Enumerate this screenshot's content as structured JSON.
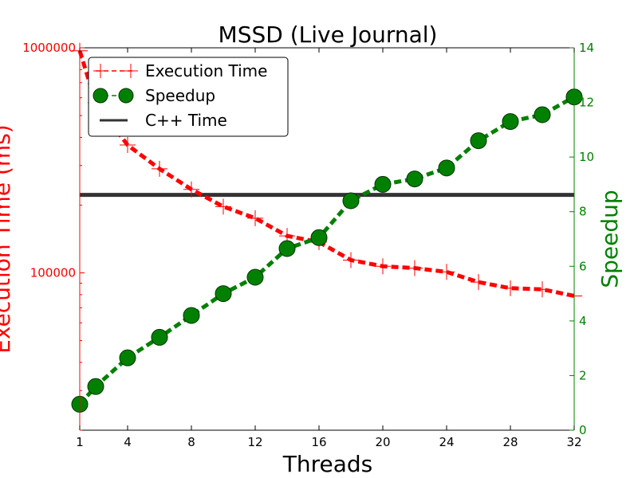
{
  "chart_data": {
    "type": "line",
    "title": "MSSD (Live Journal)",
    "xlabel": "Threads",
    "ylabel_left": "Execution Time (ms)",
    "ylabel_right": "Speedup",
    "xlim": [
      1,
      32
    ],
    "ylim_left": [
      20000,
      1000000
    ],
    "ylim_left_scale": "log",
    "ylim_right": [
      0,
      14
    ],
    "xticks": [
      {
        "value": 1,
        "label": "1"
      },
      {
        "value": 4,
        "label": "4"
      },
      {
        "value": 8,
        "label": "8"
      },
      {
        "value": 12,
        "label": "12"
      },
      {
        "value": 16,
        "label": "16"
      },
      {
        "value": 20,
        "label": "20"
      },
      {
        "value": 24,
        "label": "24"
      },
      {
        "value": 28,
        "label": "28"
      },
      {
        "value": 32,
        "label": "32"
      }
    ],
    "yticks_left": [
      {
        "value": 100000,
        "label": "100000"
      },
      {
        "value": 1000000,
        "label": "1000000"
      }
    ],
    "yticks_right": [
      {
        "value": 0,
        "label": "0"
      },
      {
        "value": 2,
        "label": "2"
      },
      {
        "value": 4,
        "label": "4"
      },
      {
        "value": 6,
        "label": "6"
      },
      {
        "value": 8,
        "label": "8"
      },
      {
        "value": 10,
        "label": "10"
      },
      {
        "value": 12,
        "label": "12"
      },
      {
        "value": 14,
        "label": "14"
      }
    ],
    "legend": {
      "position": "top-left",
      "entries": [
        {
          "label": "Execution Time",
          "marker": "plus",
          "color": "#ff0000"
        },
        {
          "label": "Speedup",
          "marker": "circle",
          "color": "#008000"
        },
        {
          "label": "C++ Time",
          "marker": "line",
          "color": "#333333"
        }
      ]
    },
    "series": [
      {
        "name": "Execution Time",
        "axis": "left",
        "color": "#ff0000",
        "marker": "plus",
        "linestyle": "dashed",
        "x": [
          1,
          2,
          4,
          6,
          8,
          10,
          12,
          14,
          16,
          18,
          20,
          22,
          24,
          26,
          28,
          30,
          32
        ],
        "y": [
          970000,
          570000,
          370000,
          290000,
          235000,
          197000,
          175000,
          146000,
          137000,
          114000,
          107000,
          105000,
          101000,
          91000,
          85500,
          84500,
          79000
        ]
      },
      {
        "name": "Speedup",
        "axis": "right",
        "color": "#008000",
        "marker": "circle",
        "linestyle": "dashed",
        "x": [
          1,
          2,
          4,
          6,
          8,
          10,
          12,
          14,
          16,
          18,
          20,
          22,
          24,
          26,
          28,
          30,
          32
        ],
        "y": [
          0.95,
          1.6,
          2.65,
          3.4,
          4.2,
          5.0,
          5.6,
          6.65,
          7.05,
          8.4,
          9.0,
          9.2,
          9.6,
          10.6,
          11.3,
          11.55,
          12.2
        ]
      },
      {
        "name": "C++ Time",
        "axis": "left",
        "color": "#333333",
        "marker": "none",
        "linestyle": "solid",
        "y_const": 222000
      }
    ],
    "colors": {
      "left_axis": "#ff0000",
      "right_axis": "#008000",
      "frame": "#000000"
    }
  }
}
